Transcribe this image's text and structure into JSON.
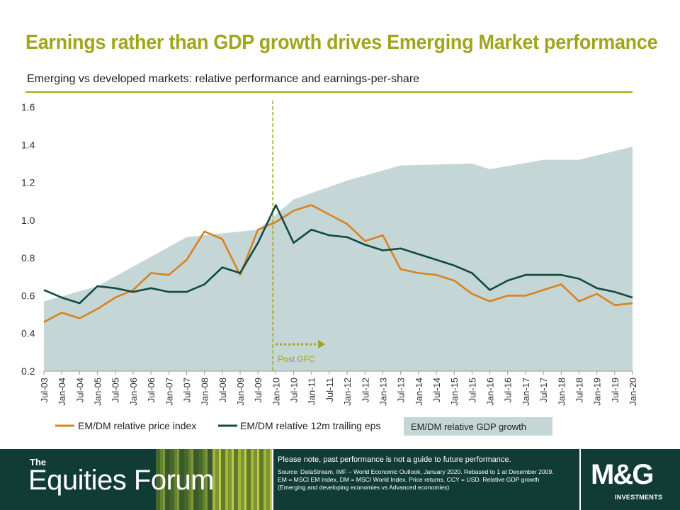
{
  "slide": {
    "title": "Earnings rather than GDP growth drives Emerging Market performance",
    "subtitle": "Emerging vs developed markets: relative performance and earnings-per-share"
  },
  "chart_data": {
    "type": "line",
    "ylim": [
      0.2,
      1.6
    ],
    "yticks": [
      "0.2",
      "0.4",
      "0.6",
      "0.8",
      "1.0",
      "1.2",
      "1.4",
      "1.6"
    ],
    "xticks": [
      "Jul-03",
      "Jan-04",
      "Jul-04",
      "Jan-05",
      "Jul-05",
      "Jan-06",
      "Jul-06",
      "Jan-07",
      "Jul-07",
      "Jan-08",
      "Jul-08",
      "Jan-09",
      "Jul-09",
      "Jan-10",
      "Jul-10",
      "Jan-11",
      "Jul-11",
      "Jan-12",
      "Jul-12",
      "Jan-13",
      "Jul-13",
      "Jan-14",
      "Jul-14",
      "Jan-15",
      "Jul-15",
      "Jan-16",
      "Jul-16",
      "Jan-17",
      "Jul-17",
      "Jan-18",
      "Jul-18",
      "Jan-19",
      "Jul-19",
      "Jan-20"
    ],
    "annotation": "Post GFC",
    "annotation_x": "Dec-09",
    "legend_placement": "bottom",
    "series": [
      {
        "name": "EM/DM relative price index",
        "style": "line",
        "color": "#d7831f",
        "x": [
          "Jul-03",
          "Jan-04",
          "Jul-04",
          "Jan-05",
          "Jul-05",
          "Jan-06",
          "Jul-06",
          "Jan-07",
          "Jul-07",
          "Jan-08",
          "Jul-08",
          "Jan-09",
          "Jul-09",
          "Jan-10",
          "Jul-10",
          "Jan-11",
          "Jul-11",
          "Jan-12",
          "Jul-12",
          "Jan-13",
          "Jul-13",
          "Jan-14",
          "Jul-14",
          "Jan-15",
          "Jul-15",
          "Jan-16",
          "Jul-16",
          "Jan-17",
          "Jul-17",
          "Jan-18",
          "Jul-18",
          "Jan-19",
          "Jul-19",
          "Jan-20"
        ],
        "values": [
          0.46,
          0.51,
          0.48,
          0.53,
          0.59,
          0.63,
          0.72,
          0.71,
          0.79,
          0.94,
          0.9,
          0.71,
          0.95,
          0.99,
          1.05,
          1.08,
          1.03,
          0.98,
          0.89,
          0.92,
          0.74,
          0.72,
          0.71,
          0.68,
          0.61,
          0.57,
          0.6,
          0.6,
          0.63,
          0.66,
          0.57,
          0.61,
          0.55,
          0.56
        ]
      },
      {
        "name": "EM/DM relative 12m trailing eps",
        "style": "line",
        "color": "#0f4a43",
        "x": [
          "Jul-03",
          "Jan-04",
          "Jul-04",
          "Jan-05",
          "Jul-05",
          "Jan-06",
          "Jul-06",
          "Jan-07",
          "Jul-07",
          "Jan-08",
          "Jul-08",
          "Jan-09",
          "Jul-09",
          "Jan-10",
          "Jul-10",
          "Jan-11",
          "Jul-11",
          "Jan-12",
          "Jul-12",
          "Jan-13",
          "Jul-13",
          "Jan-14",
          "Jul-14",
          "Jan-15",
          "Jul-15",
          "Jan-16",
          "Jul-16",
          "Jan-17",
          "Jul-17",
          "Jan-18",
          "Jul-18",
          "Jan-19",
          "Jul-19",
          "Jan-20"
        ],
        "values": [
          0.63,
          0.59,
          0.56,
          0.65,
          0.64,
          0.62,
          0.64,
          0.62,
          0.62,
          0.66,
          0.75,
          0.72,
          0.88,
          1.08,
          0.88,
          0.95,
          0.92,
          0.91,
          0.87,
          0.84,
          0.85,
          0.82,
          0.79,
          0.76,
          0.72,
          0.63,
          0.68,
          0.71,
          0.71,
          0.71,
          0.69,
          0.64,
          0.62,
          0.59
        ]
      },
      {
        "name": "EM/DM relative GDP growth",
        "style": "area",
        "color": "#c5d6d6",
        "x": [
          "Jul-03",
          "Jan-05",
          "Jul-07",
          "Jul-09",
          "Jul-10",
          "Jan-12",
          "Jul-13",
          "Jul-15",
          "Jan-16",
          "Jul-17",
          "Jul-18",
          "Jan-20"
        ],
        "values": [
          0.57,
          0.65,
          0.91,
          0.95,
          1.11,
          1.21,
          1.29,
          1.3,
          1.27,
          1.32,
          1.32,
          1.39
        ]
      }
    ]
  },
  "footer": {
    "forum_the": "The",
    "forum_name": "Equities Forum",
    "disclaimer": "Please note, past performance  is not a guide to future performance.",
    "source": "Source: DataStream, IMF – World Economic Outlook, January 2020. Rebased to 1 at December 2009. EM = MSCI EM Index, DM = MSCI World Index. Price returns. CCY = USD. Relative GDP growth (Emerging and developing economies vs Advanced economies)",
    "logo": "M&G",
    "logo_sub": "INVESTMENTS"
  }
}
